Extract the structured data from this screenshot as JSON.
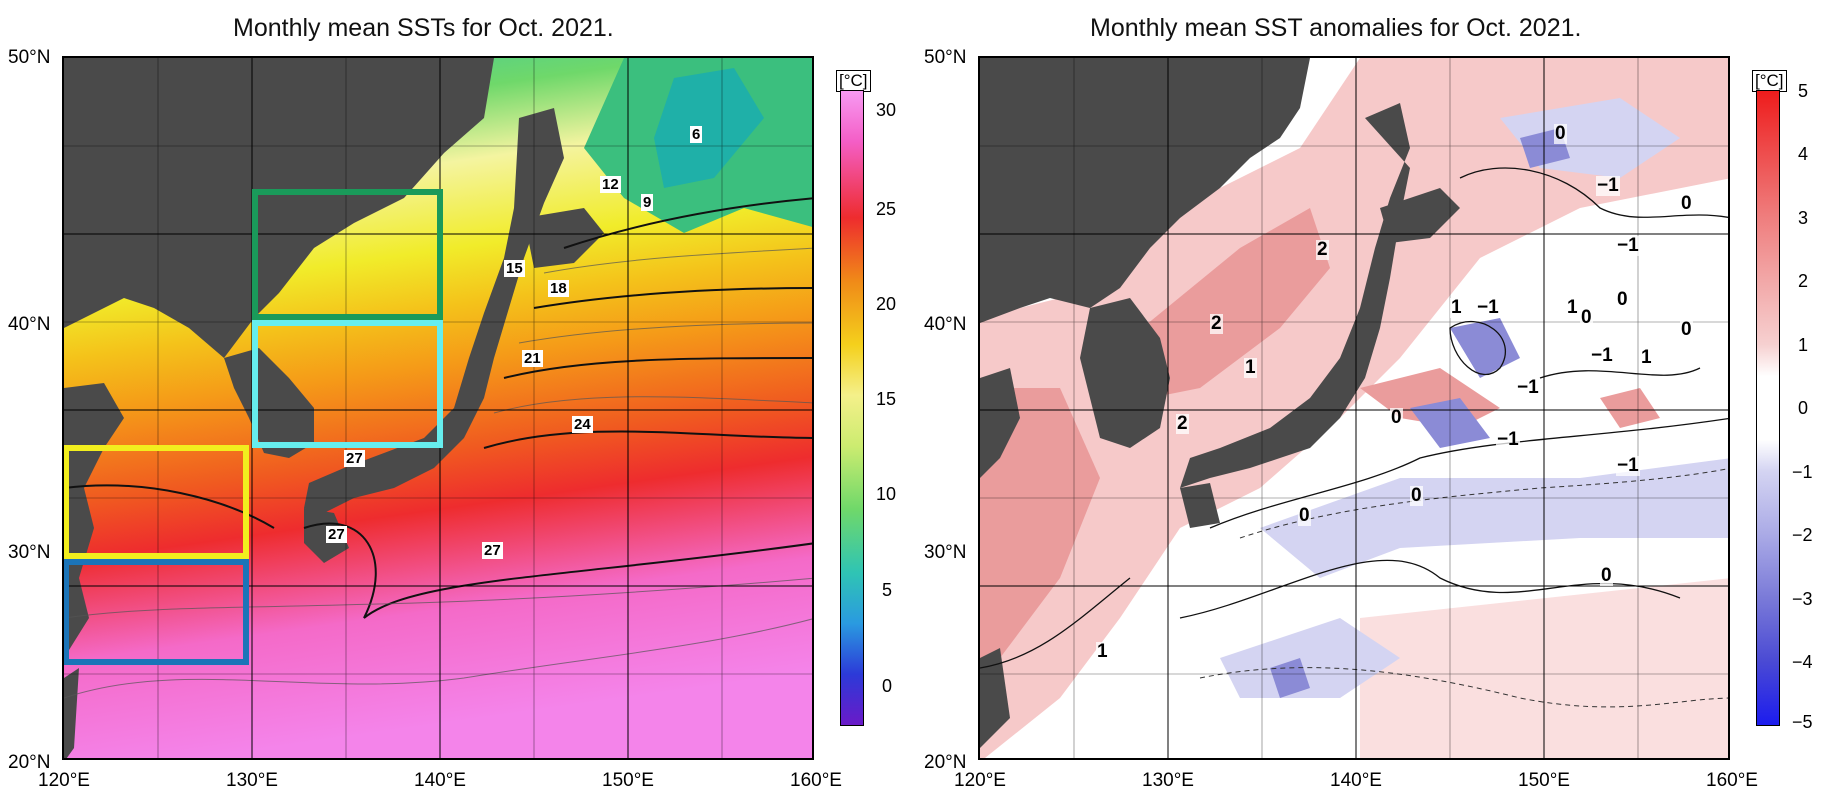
{
  "left_panel": {
    "title": "Monthly mean SSTs for Oct. 2021.",
    "colorbar_unit": "[°C]",
    "colorbar_ticks": [
      "30",
      "25",
      "20",
      "15",
      "10",
      "5",
      "0"
    ],
    "contour_labels": [
      "6",
      "12",
      "9",
      "15",
      "18",
      "21",
      "24",
      "27",
      "27",
      "27"
    ],
    "region_box_colors": {
      "green": "#1a9a5a",
      "cyan": "#66eeee",
      "yellow": "#f2ee1e",
      "blue": "#1b74b8"
    }
  },
  "right_panel": {
    "title": "Monthly mean SST anomalies for Oct. 2021.",
    "colorbar_unit": "[°C]",
    "colorbar_ticks": [
      "5",
      "4",
      "3",
      "2",
      "1",
      "0",
      "−1",
      "−2",
      "−3",
      "−4",
      "−5"
    ],
    "contour_labels": [
      "0",
      "−1",
      "0",
      "2",
      "−1",
      "0",
      "1",
      "−1",
      "1",
      "0",
      "0",
      "2",
      "−1",
      "1",
      "1",
      "−1",
      "2",
      "0",
      "−1",
      "−1",
      "0",
      "0",
      "0",
      "1"
    ]
  },
  "axes": {
    "lat_labels": [
      "50°N",
      "40°N",
      "30°N",
      "20°N"
    ],
    "lon_labels": [
      "120°E",
      "130°E",
      "140°E",
      "150°E",
      "160°E"
    ]
  },
  "colors": {
    "land": "#4a4a4a",
    "warm_anomaly": "#e78a8a",
    "cool_anomaly": "#8b8bd6"
  }
}
